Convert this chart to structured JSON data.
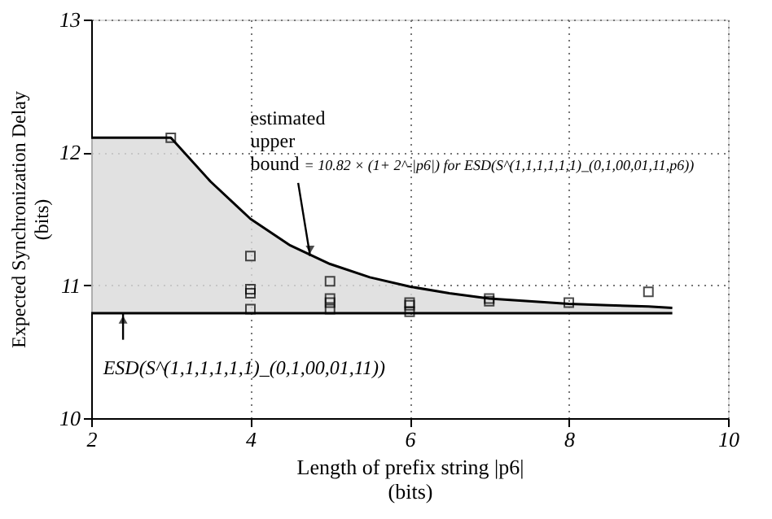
{
  "chart_data": {
    "type": "scatter",
    "xlabel": "Length of prefix string  |p6|\n(bits)",
    "ylabel": "Expected Synchronization Delay\n(bits)",
    "xlim": [
      2,
      10
    ],
    "ylim": [
      10,
      13
    ],
    "xticks": [
      2,
      4,
      6,
      8,
      10
    ],
    "yticks": [
      10,
      11,
      12,
      13
    ],
    "grid": true,
    "series": [
      {
        "type": "line",
        "color": "#000000",
        "x": [
          2,
          3,
          3.5,
          4,
          4.5,
          5,
          5.5,
          6,
          6.5,
          7,
          7.5,
          8,
          8.5,
          9,
          9.3
        ],
        "values": [
          12.11,
          12.11,
          11.78,
          11.5,
          11.3,
          11.16,
          11.06,
          10.99,
          10.94,
          10.9,
          10.88,
          10.86,
          10.85,
          10.84,
          10.83
        ],
        "lower": [
          10.79,
          10.79,
          10.79,
          10.79,
          10.79,
          10.79,
          10.79,
          10.79,
          10.79,
          10.79,
          10.79,
          10.79,
          10.79,
          10.79,
          10.79
        ],
        "upper": [
          12.11,
          12.11,
          11.78,
          11.5,
          11.3,
          11.16,
          11.06,
          10.99,
          10.94,
          10.9,
          10.88,
          10.86,
          10.85,
          10.84,
          10.83
        ]
      },
      {
        "type": "line",
        "color": "#000000",
        "x": [
          2,
          9.3
        ],
        "values": [
          10.79,
          10.79
        ]
      },
      {
        "marker": "square",
        "color": "#000000",
        "x": [
          3,
          4,
          4,
          4,
          4,
          5,
          5,
          5,
          5,
          6,
          6,
          6,
          7,
          7,
          8,
          9
        ],
        "values": [
          12.11,
          11.22,
          10.97,
          10.94,
          10.82,
          11.03,
          10.9,
          10.87,
          10.82,
          10.87,
          10.85,
          10.8,
          10.9,
          10.88,
          10.87,
          10.95
        ]
      }
    ],
    "annotations": [
      {
        "text": "estimated\nupper\nbound",
        "x": 4.75,
        "y": 11.22
      },
      "= 10.82 × (1+ 2^-|p6|) for ESD(S^(1,1,1,1,1,1)_(0,1,00,01,11,p6))",
      {
        "text": "ESD(S^(1,1,1,1,1,1)_(0,1,00,01,11))",
        "x": 2.4,
        "y": 10.79
      }
    ]
  }
}
